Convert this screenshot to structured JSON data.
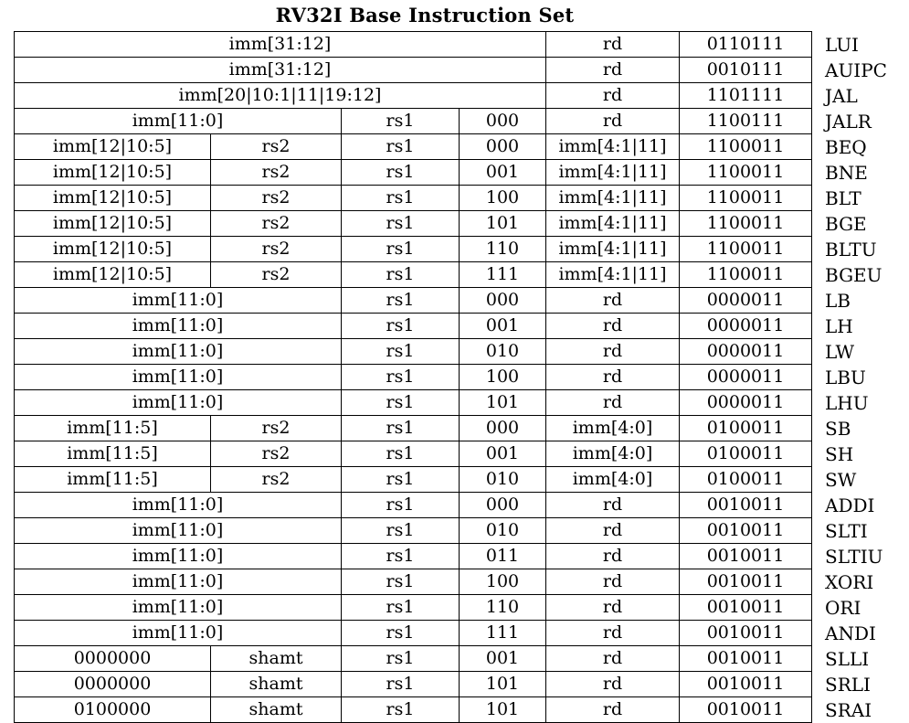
{
  "title": "RV32I Base Instruction Set",
  "rows": [
    {
      "cells": [
        {
          "t": "imm[31:12]",
          "span": 4
        },
        {
          "t": "rd"
        },
        {
          "t": "0110111"
        }
      ],
      "mn": "LUI"
    },
    {
      "cells": [
        {
          "t": "imm[31:12]",
          "span": 4
        },
        {
          "t": "rd"
        },
        {
          "t": "0010111"
        }
      ],
      "mn": "AUIPC"
    },
    {
      "cells": [
        {
          "t": "imm[20|10:1|11|19:12]",
          "span": 4
        },
        {
          "t": "rd"
        },
        {
          "t": "1101111"
        }
      ],
      "mn": "JAL"
    },
    {
      "cells": [
        {
          "t": "imm[11:0]",
          "span": 2
        },
        {
          "t": "rs1"
        },
        {
          "t": "000"
        },
        {
          "t": "rd"
        },
        {
          "t": "1100111"
        }
      ],
      "mn": "JALR"
    },
    {
      "cells": [
        {
          "t": "imm[12|10:5]"
        },
        {
          "t": "rs2"
        },
        {
          "t": "rs1"
        },
        {
          "t": "000"
        },
        {
          "t": "imm[4:1|11]"
        },
        {
          "t": "1100011"
        }
      ],
      "mn": "BEQ"
    },
    {
      "cells": [
        {
          "t": "imm[12|10:5]"
        },
        {
          "t": "rs2"
        },
        {
          "t": "rs1"
        },
        {
          "t": "001"
        },
        {
          "t": "imm[4:1|11]"
        },
        {
          "t": "1100011"
        }
      ],
      "mn": "BNE"
    },
    {
      "cells": [
        {
          "t": "imm[12|10:5]"
        },
        {
          "t": "rs2"
        },
        {
          "t": "rs1"
        },
        {
          "t": "100"
        },
        {
          "t": "imm[4:1|11]"
        },
        {
          "t": "1100011"
        }
      ],
      "mn": "BLT"
    },
    {
      "cells": [
        {
          "t": "imm[12|10:5]"
        },
        {
          "t": "rs2"
        },
        {
          "t": "rs1"
        },
        {
          "t": "101"
        },
        {
          "t": "imm[4:1|11]"
        },
        {
          "t": "1100011"
        }
      ],
      "mn": "BGE"
    },
    {
      "cells": [
        {
          "t": "imm[12|10:5]"
        },
        {
          "t": "rs2"
        },
        {
          "t": "rs1"
        },
        {
          "t": "110"
        },
        {
          "t": "imm[4:1|11]"
        },
        {
          "t": "1100011"
        }
      ],
      "mn": "BLTU"
    },
    {
      "cells": [
        {
          "t": "imm[12|10:5]"
        },
        {
          "t": "rs2"
        },
        {
          "t": "rs1"
        },
        {
          "t": "111"
        },
        {
          "t": "imm[4:1|11]"
        },
        {
          "t": "1100011"
        }
      ],
      "mn": "BGEU"
    },
    {
      "cells": [
        {
          "t": "imm[11:0]",
          "span": 2
        },
        {
          "t": "rs1"
        },
        {
          "t": "000"
        },
        {
          "t": "rd"
        },
        {
          "t": "0000011"
        }
      ],
      "mn": "LB"
    },
    {
      "cells": [
        {
          "t": "imm[11:0]",
          "span": 2
        },
        {
          "t": "rs1"
        },
        {
          "t": "001"
        },
        {
          "t": "rd"
        },
        {
          "t": "0000011"
        }
      ],
      "mn": "LH"
    },
    {
      "cells": [
        {
          "t": "imm[11:0]",
          "span": 2
        },
        {
          "t": "rs1"
        },
        {
          "t": "010"
        },
        {
          "t": "rd"
        },
        {
          "t": "0000011"
        }
      ],
      "mn": "LW"
    },
    {
      "cells": [
        {
          "t": "imm[11:0]",
          "span": 2
        },
        {
          "t": "rs1"
        },
        {
          "t": "100"
        },
        {
          "t": "rd"
        },
        {
          "t": "0000011"
        }
      ],
      "mn": "LBU"
    },
    {
      "cells": [
        {
          "t": "imm[11:0]",
          "span": 2
        },
        {
          "t": "rs1"
        },
        {
          "t": "101"
        },
        {
          "t": "rd"
        },
        {
          "t": "0000011"
        }
      ],
      "mn": "LHU"
    },
    {
      "cells": [
        {
          "t": "imm[11:5]"
        },
        {
          "t": "rs2"
        },
        {
          "t": "rs1"
        },
        {
          "t": "000"
        },
        {
          "t": "imm[4:0]"
        },
        {
          "t": "0100011"
        }
      ],
      "mn": "SB"
    },
    {
      "cells": [
        {
          "t": "imm[11:5]"
        },
        {
          "t": "rs2"
        },
        {
          "t": "rs1"
        },
        {
          "t": "001"
        },
        {
          "t": "imm[4:0]"
        },
        {
          "t": "0100011"
        }
      ],
      "mn": "SH"
    },
    {
      "cells": [
        {
          "t": "imm[11:5]"
        },
        {
          "t": "rs2"
        },
        {
          "t": "rs1"
        },
        {
          "t": "010"
        },
        {
          "t": "imm[4:0]"
        },
        {
          "t": "0100011"
        }
      ],
      "mn": "SW"
    },
    {
      "cells": [
        {
          "t": "imm[11:0]",
          "span": 2
        },
        {
          "t": "rs1"
        },
        {
          "t": "000"
        },
        {
          "t": "rd"
        },
        {
          "t": "0010011"
        }
      ],
      "mn": "ADDI"
    },
    {
      "cells": [
        {
          "t": "imm[11:0]",
          "span": 2
        },
        {
          "t": "rs1"
        },
        {
          "t": "010"
        },
        {
          "t": "rd"
        },
        {
          "t": "0010011"
        }
      ],
      "mn": "SLTI"
    },
    {
      "cells": [
        {
          "t": "imm[11:0]",
          "span": 2
        },
        {
          "t": "rs1"
        },
        {
          "t": "011"
        },
        {
          "t": "rd"
        },
        {
          "t": "0010011"
        }
      ],
      "mn": "SLTIU"
    },
    {
      "cells": [
        {
          "t": "imm[11:0]",
          "span": 2
        },
        {
          "t": "rs1"
        },
        {
          "t": "100"
        },
        {
          "t": "rd"
        },
        {
          "t": "0010011"
        }
      ],
      "mn": "XORI"
    },
    {
      "cells": [
        {
          "t": "imm[11:0]",
          "span": 2
        },
        {
          "t": "rs1"
        },
        {
          "t": "110"
        },
        {
          "t": "rd"
        },
        {
          "t": "0010011"
        }
      ],
      "mn": "ORI"
    },
    {
      "cells": [
        {
          "t": "imm[11:0]",
          "span": 2
        },
        {
          "t": "rs1"
        },
        {
          "t": "111"
        },
        {
          "t": "rd"
        },
        {
          "t": "0010011"
        }
      ],
      "mn": "ANDI"
    },
    {
      "cells": [
        {
          "t": "0000000"
        },
        {
          "t": "shamt"
        },
        {
          "t": "rs1"
        },
        {
          "t": "001"
        },
        {
          "t": "rd"
        },
        {
          "t": "0010011"
        }
      ],
      "mn": "SLLI"
    },
    {
      "cells": [
        {
          "t": "0000000"
        },
        {
          "t": "shamt"
        },
        {
          "t": "rs1"
        },
        {
          "t": "101"
        },
        {
          "t": "rd"
        },
        {
          "t": "0010011"
        }
      ],
      "mn": "SRLI"
    },
    {
      "cells": [
        {
          "t": "0100000"
        },
        {
          "t": "shamt"
        },
        {
          "t": "rs1"
        },
        {
          "t": "101"
        },
        {
          "t": "rd"
        },
        {
          "t": "0010011"
        }
      ],
      "mn": "SRAI"
    }
  ]
}
